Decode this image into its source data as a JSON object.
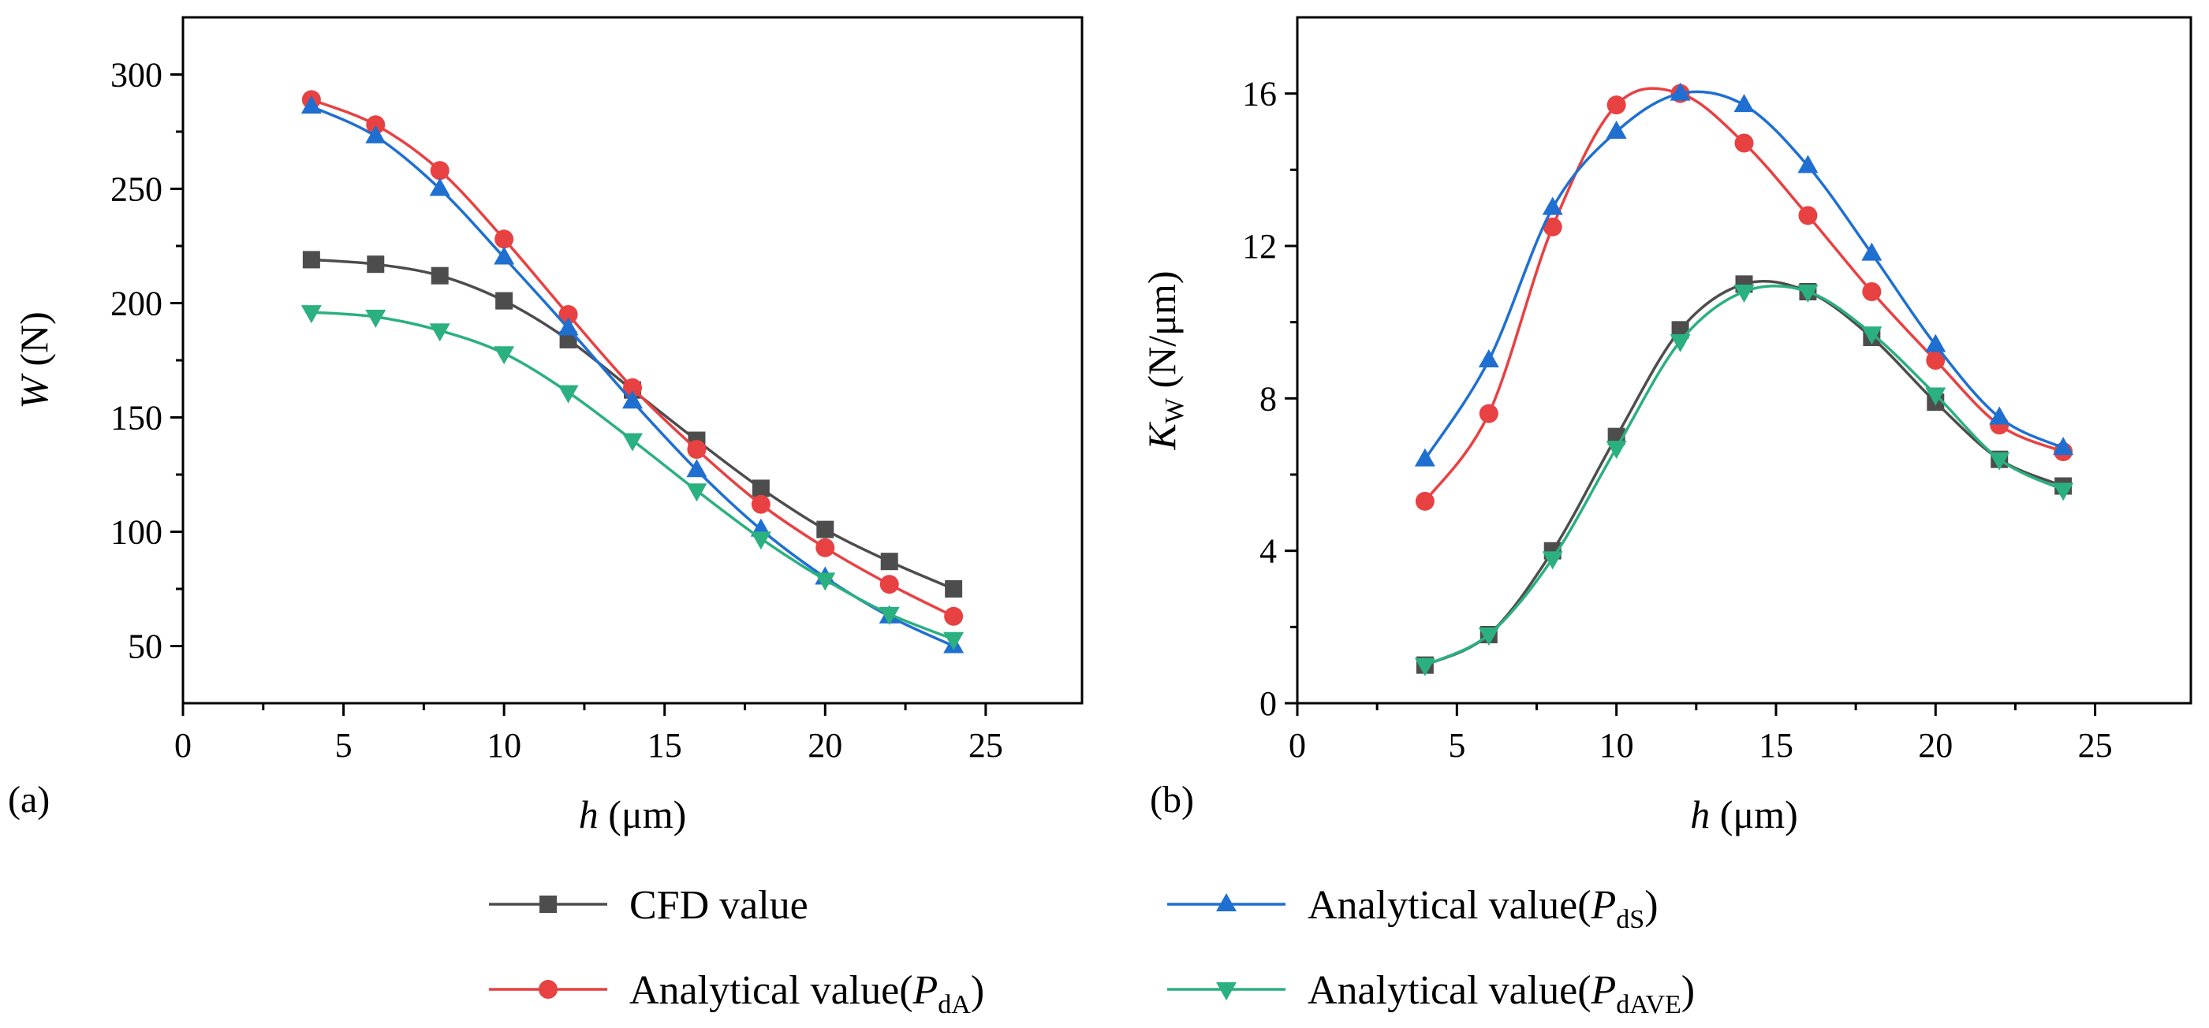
{
  "figure": {
    "legend": [
      {
        "key": "cfd",
        "prefix": "CFD value",
        "italic": "",
        "sub": "",
        "suffix": ""
      },
      {
        "key": "pds",
        "prefix": "Analytical value(",
        "italic": "P",
        "sub": "dS",
        "suffix": ")"
      },
      {
        "key": "pda",
        "prefix": "Analytical value(",
        "italic": "P",
        "sub": "dA",
        "suffix": ")"
      },
      {
        "key": "pdave",
        "prefix": "Analytical value(",
        "italic": "P",
        "sub": "dAVE",
        "suffix": ")"
      }
    ],
    "colors": {
      "cfd": "#4d4d4d",
      "pda": "#e84142",
      "pds": "#1f6fd1",
      "pdave": "#2bb07f"
    },
    "markers": {
      "cfd": "square",
      "pda": "circle",
      "pds": "triangle-up",
      "pdave": "triangle-down"
    }
  },
  "chart_data": [
    {
      "type": "line",
      "panel_label": "(a)",
      "xlabel": {
        "italic": "h",
        "rest": " (μm)"
      },
      "ylabel": {
        "italic": "W",
        "rest": " (N)",
        "sub": ""
      },
      "xlim": [
        0,
        28
      ],
      "ylim": [
        25,
        325
      ],
      "xticks": [
        0,
        5,
        10,
        15,
        20,
        25
      ],
      "xticks_minor": [
        2.5,
        7.5,
        12.5,
        17.5,
        22.5
      ],
      "yticks": [
        50,
        100,
        150,
        200,
        250,
        300
      ],
      "x": [
        4,
        6,
        8,
        10,
        12,
        14,
        16,
        18,
        20,
        22,
        24
      ],
      "series": [
        {
          "key": "cfd",
          "name": "CFD value",
          "values": [
            219,
            217,
            212,
            201,
            184,
            162,
            140,
            119,
            101,
            87,
            75
          ]
        },
        {
          "key": "pda",
          "name": "Analytical value(PdA)",
          "values": [
            289,
            278,
            258,
            228,
            195,
            163,
            136,
            112,
            93,
            77,
            63
          ]
        },
        {
          "key": "pds",
          "name": "Analytical value(PdS)",
          "values": [
            286,
            273,
            250,
            220,
            189,
            157,
            127,
            101,
            80,
            63,
            50
          ]
        },
        {
          "key": "pdave",
          "name": "Analytical value(PdAVE)",
          "values": [
            196,
            194,
            188,
            178,
            161,
            140,
            118,
            97,
            79,
            64,
            53
          ]
        }
      ]
    },
    {
      "type": "line",
      "panel_label": "(b)",
      "xlabel": {
        "italic": "h",
        "rest": " (μm)"
      },
      "ylabel": {
        "italic": "K",
        "rest": " (N/μm)",
        "sub": "W"
      },
      "xlim": [
        0,
        28
      ],
      "ylim": [
        0,
        18
      ],
      "xticks": [
        0,
        5,
        10,
        15,
        20,
        25
      ],
      "xticks_minor": [
        2.5,
        7.5,
        12.5,
        17.5,
        22.5
      ],
      "yticks": [
        0,
        4,
        8,
        12,
        16
      ],
      "x": [
        4,
        6,
        8,
        10,
        12,
        14,
        16,
        18,
        20,
        22,
        24
      ],
      "series": [
        {
          "key": "cfd",
          "name": "CFD value",
          "values": [
            1.0,
            1.8,
            4.0,
            7.0,
            9.8,
            11.0,
            10.8,
            9.6,
            7.9,
            6.4,
            5.7
          ]
        },
        {
          "key": "pda",
          "name": "Analytical value(PdA)",
          "values": [
            5.3,
            7.6,
            12.5,
            15.7,
            16.0,
            14.7,
            12.8,
            10.8,
            9.0,
            7.3,
            6.6
          ]
        },
        {
          "key": "pds",
          "name": "Analytical value(PdS)",
          "values": [
            6.4,
            9.0,
            13.0,
            15.0,
            16.0,
            15.7,
            14.1,
            11.8,
            9.4,
            7.5,
            6.7
          ]
        },
        {
          "key": "pdave",
          "name": "Analytical value(PdAVE)",
          "values": [
            1.0,
            1.8,
            3.8,
            6.7,
            9.5,
            10.8,
            10.8,
            9.7,
            8.1,
            6.4,
            5.6
          ]
        }
      ]
    }
  ]
}
